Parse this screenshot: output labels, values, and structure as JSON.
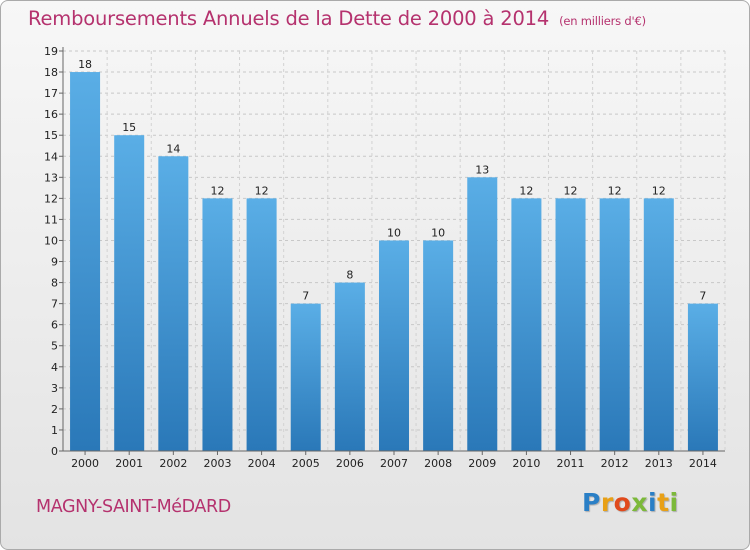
{
  "header": {
    "title": "Remboursements Annuels de la Dette de 2000 à 2014",
    "unit": "(en milliers d'€)"
  },
  "footer": {
    "commune": "MAGNY-SAINT-MéDARD",
    "brand_letters": [
      "P",
      "r",
      "o",
      "x",
      "i",
      "t",
      "i"
    ],
    "brand_colors": [
      "#2a7fc6",
      "#e8a016",
      "#e04a1c",
      "#7cb93a",
      "#2a7fc6",
      "#e8a016",
      "#7cb93a"
    ]
  },
  "chart_data": {
    "type": "bar",
    "title": "Remboursements Annuels de la Dette de 2000 à 2014",
    "xlabel": "",
    "ylabel": "(en milliers d'€)",
    "categories": [
      "2000",
      "2001",
      "2002",
      "2003",
      "2004",
      "2005",
      "2006",
      "2007",
      "2008",
      "2009",
      "2010",
      "2011",
      "2012",
      "2013",
      "2014"
    ],
    "values": [
      18,
      15,
      14,
      12,
      12,
      7,
      8,
      10,
      10,
      13,
      12,
      12,
      12,
      12,
      7
    ],
    "ylim": [
      0,
      19
    ],
    "yticks": [
      "0",
      "1",
      "2",
      "3",
      "4",
      "5",
      "6",
      "7",
      "8",
      "9",
      "10",
      "11",
      "12",
      "13",
      "14",
      "15",
      "16",
      "17",
      "18",
      "19"
    ],
    "grid": true,
    "bar_color_top": "#5aaee6",
    "bar_color_bottom": "#2a78b8"
  }
}
